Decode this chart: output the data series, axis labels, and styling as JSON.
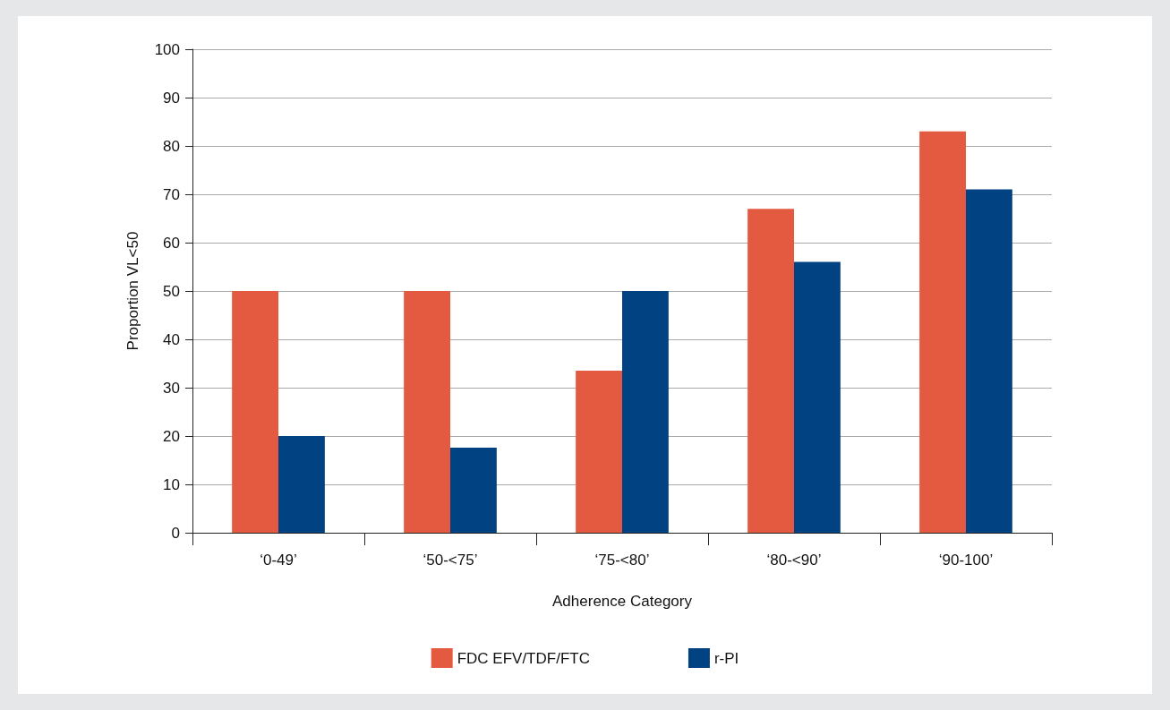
{
  "chart_data": {
    "type": "bar",
    "xlabel": "Adherence Category",
    "ylabel": "Proportion VL<50",
    "categories": [
      "‘0-49’",
      "‘50-<75’",
      "‘75-<80’",
      "‘80-<90’",
      "‘90-100’"
    ],
    "series": [
      {
        "name": "FDC EFV/TDF/FTC",
        "color": "#e35a40",
        "values": [
          50,
          50,
          33.5,
          67,
          83
        ]
      },
      {
        "name": "r-PI",
        "color": "#004282",
        "values": [
          20,
          17.6,
          50,
          56,
          71
        ]
      }
    ],
    "ylim": [
      0,
      100
    ],
    "yticks": [
      0,
      10,
      20,
      30,
      40,
      50,
      60,
      70,
      80,
      90,
      100
    ],
    "grid": "y",
    "legend": "bottom"
  }
}
